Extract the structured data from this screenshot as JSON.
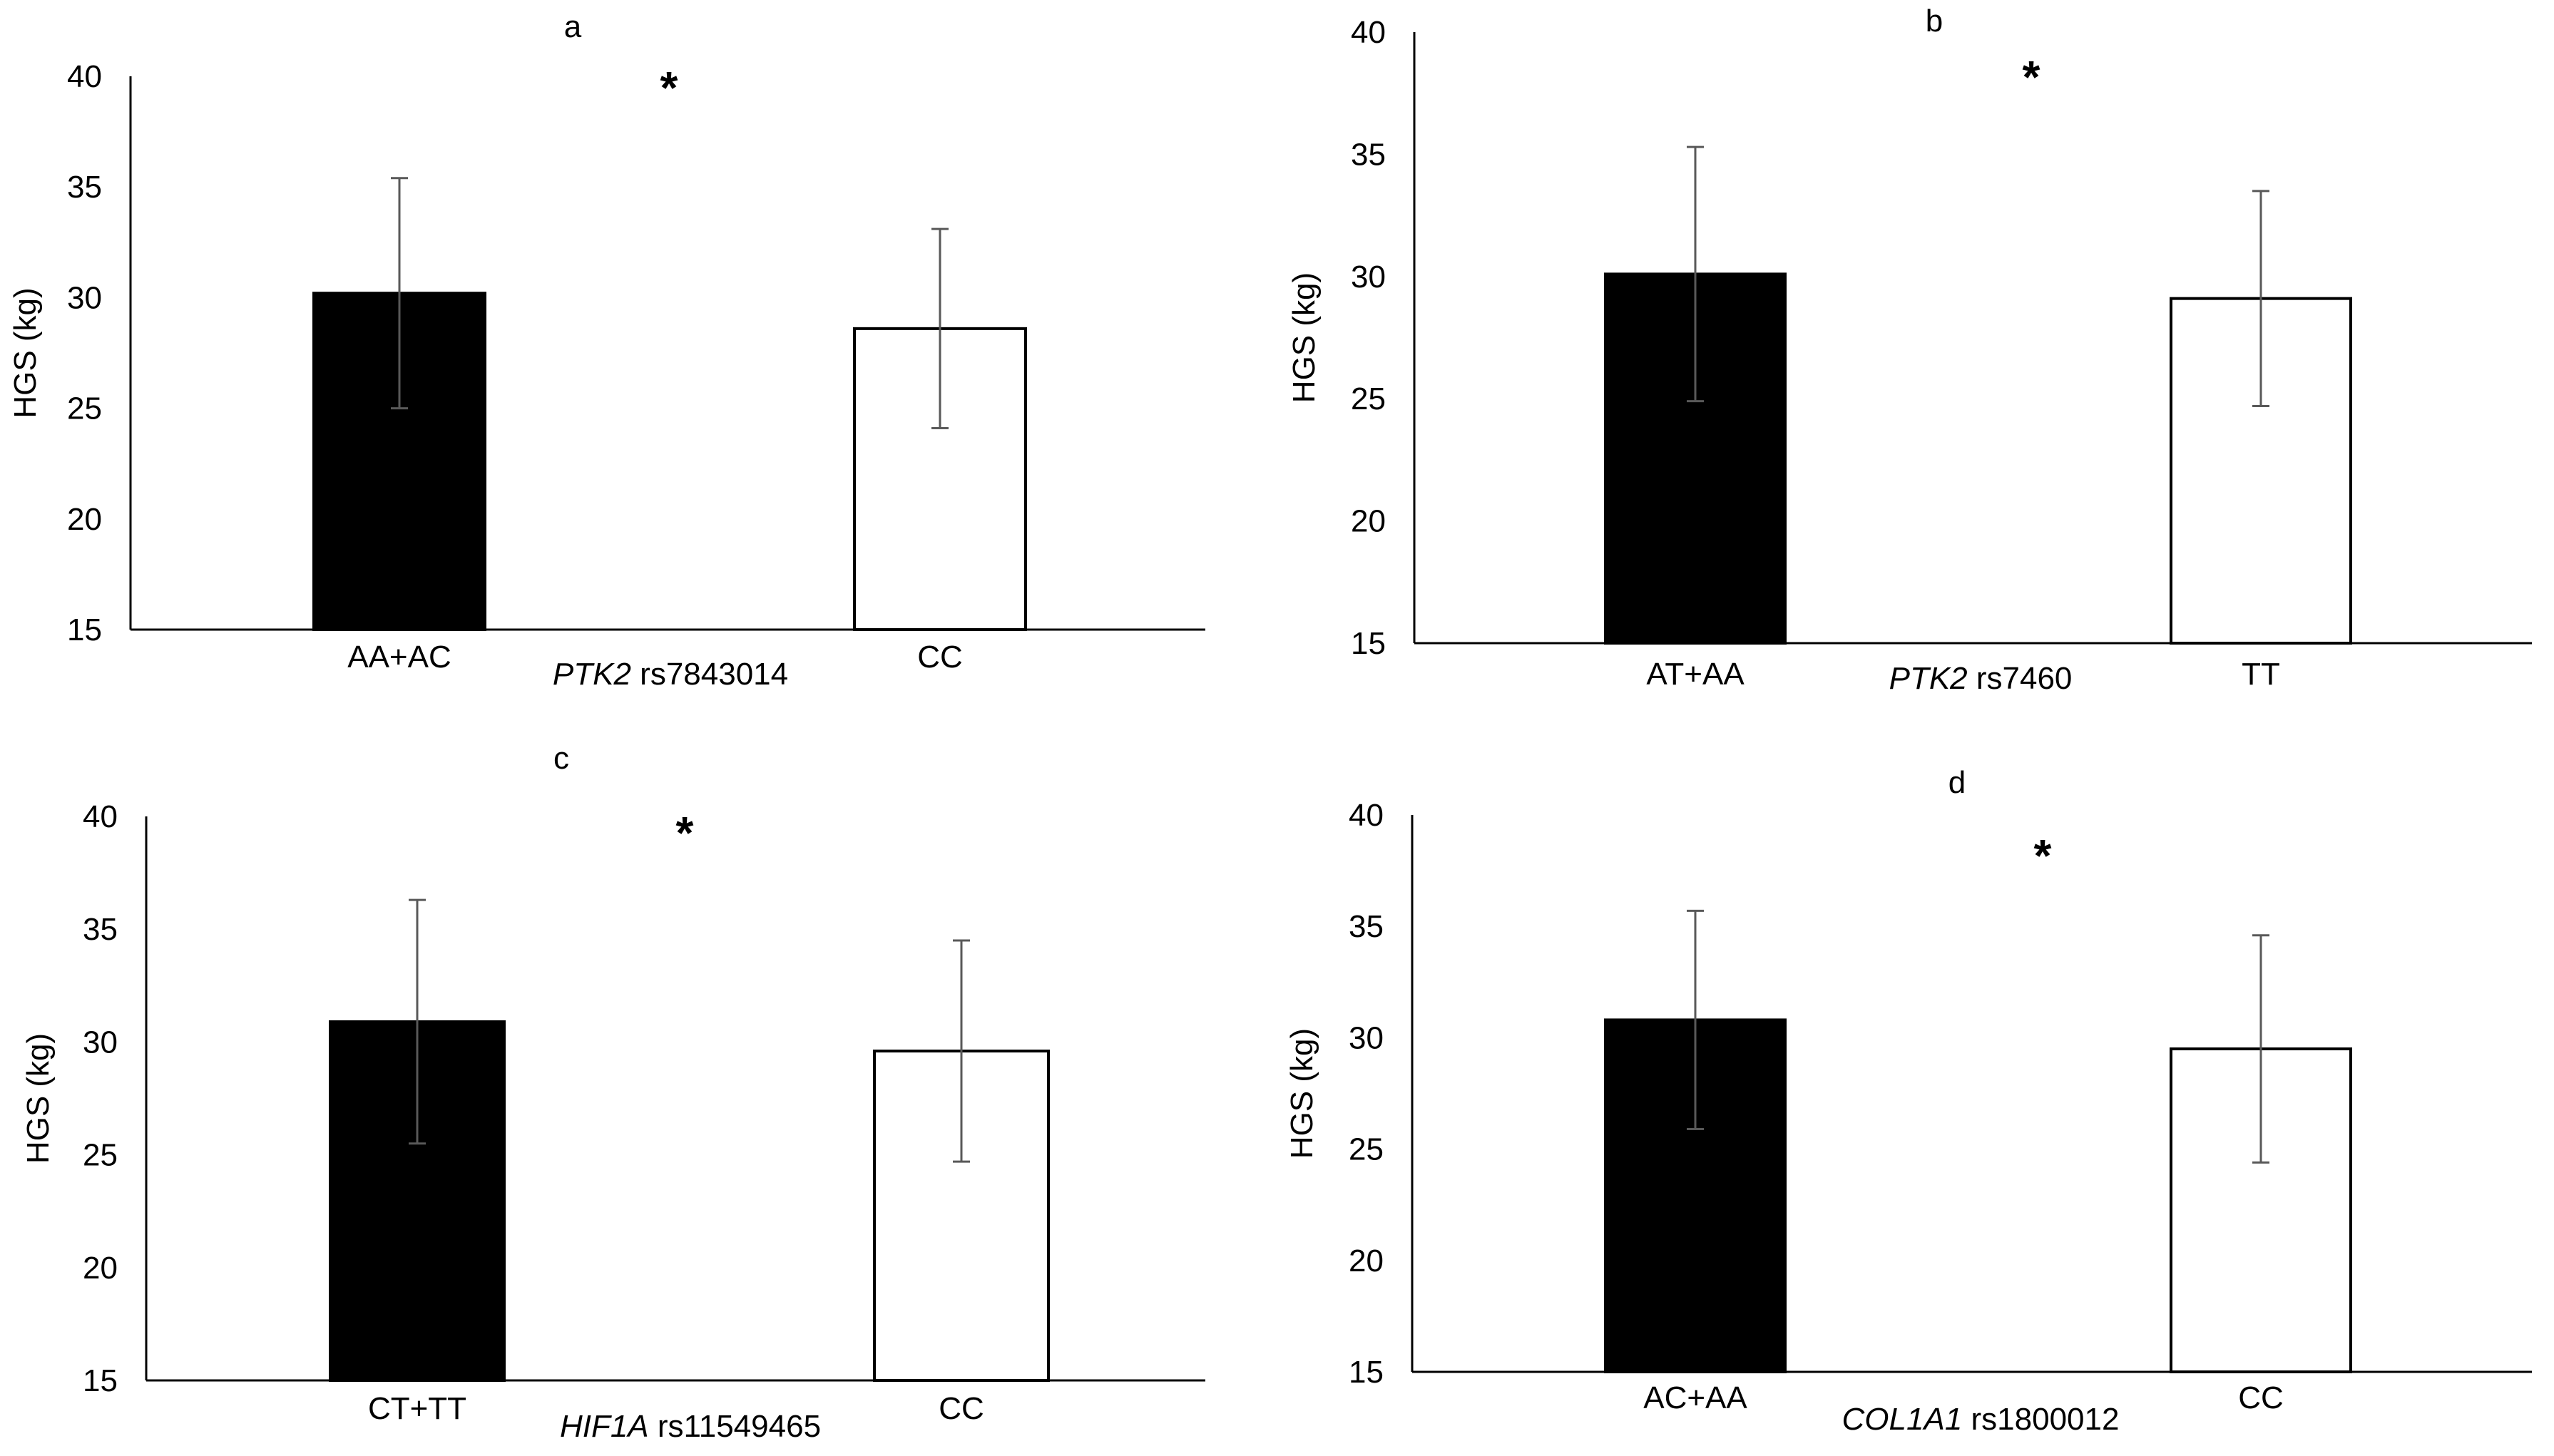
{
  "colors": {
    "filled_bar": "#000000",
    "open_bar": "#ffffff",
    "error_bar": "#595959",
    "axis": "#000000"
  },
  "chart_data": [
    {
      "type": "bar",
      "panel_label": "a",
      "significance": "*",
      "ylabel": "HGS (kg)",
      "ylim": [
        15,
        40
      ],
      "yticks": [
        "15",
        "20",
        "25",
        "30",
        "35",
        "40"
      ],
      "xlabel_gene": "PTK2",
      "xlabel_snp": " rs7843014",
      "categories": [
        "AA+AC",
        "CC"
      ],
      "values": [
        30.2,
        28.6
      ],
      "errors": [
        5.2,
        4.5
      ]
    },
    {
      "type": "bar",
      "panel_label": "b",
      "significance": "*",
      "ylabel": "HGS (kg)",
      "ylim": [
        15,
        40
      ],
      "yticks": [
        "15",
        "20",
        "25",
        "30",
        "35",
        "40"
      ],
      "xlabel_gene": "PTK2",
      "xlabel_snp": " rs7460",
      "categories": [
        "AT+AA",
        "TT"
      ],
      "values": [
        30.1,
        29.1
      ],
      "errors": [
        5.2,
        4.4
      ]
    },
    {
      "type": "bar",
      "panel_label": "c",
      "significance": "*",
      "ylabel": "HGS (kg)",
      "ylim": [
        15,
        40
      ],
      "yticks": [
        "15",
        "20",
        "25",
        "30",
        "35",
        "40"
      ],
      "xlabel_gene": "HIF1A",
      "xlabel_snp": " rs11549465",
      "categories": [
        "CT+TT",
        "CC"
      ],
      "values": [
        30.9,
        29.6
      ],
      "errors": [
        5.4,
        4.9
      ]
    },
    {
      "type": "bar",
      "panel_label": "d",
      "significance": "*",
      "ylabel": "HGS (kg)",
      "ylim": [
        15,
        40
      ],
      "yticks": [
        "15",
        "20",
        "25",
        "30",
        "35",
        "40"
      ],
      "xlabel_gene": "COL1A1",
      "xlabel_snp": " rs1800012",
      "categories": [
        "AC+AA",
        "CC"
      ],
      "values": [
        30.8,
        29.5
      ],
      "errors": [
        4.9,
        5.1
      ]
    }
  ]
}
